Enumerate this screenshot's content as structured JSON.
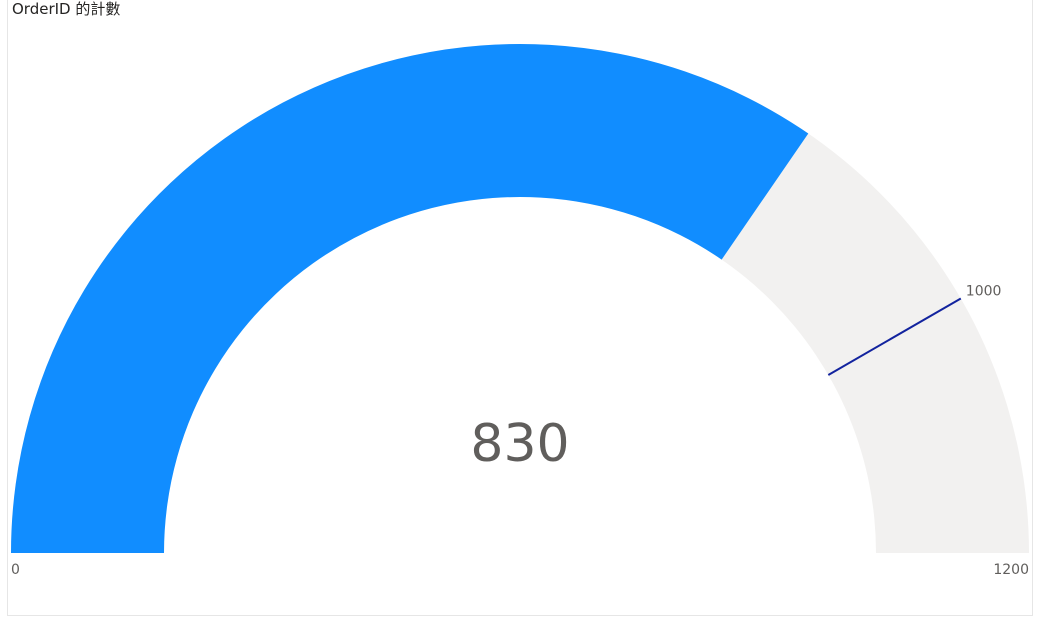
{
  "title": "OrderID 的計數",
  "colors": {
    "fill": "#118dff",
    "track": "#f2f1f0",
    "target": "#12239e",
    "text": "#605e5c",
    "title": "#252423"
  },
  "chart_data": {
    "type": "gauge",
    "title": "OrderID 的計數",
    "value": 830,
    "min": 0,
    "max": 1200,
    "target": 1000,
    "value_label": "830",
    "min_label": "0",
    "max_label": "1200",
    "target_label": "1000"
  }
}
